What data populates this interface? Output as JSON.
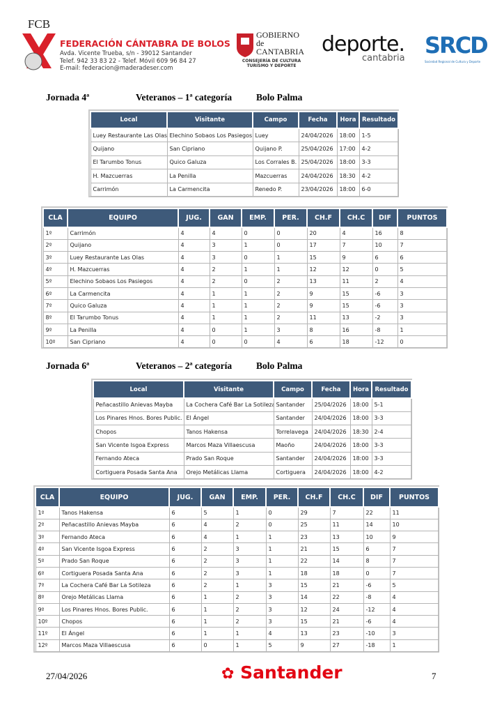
{
  "header": {
    "logo_text": "FCB",
    "org_name": "FEDERACIÓN CÁNTABRA DE BOLOS",
    "address": "Avda. Vicente Trueba, s/n - 39012 Santander",
    "phone": "Telef. 942 33 83 22  - Telef. Móvil 609 96 84 27",
    "email": "E-mail: federacion@maderadeser.com",
    "gov_line1": "GOBIERNO",
    "gov_line2": "de",
    "gov_line3": "CANTABRIA",
    "gov_sub1": "CONSEJERÍA DE CULTURA",
    "gov_sub2": "TURISMO Y DEPORTE",
    "deporte": "deporte.",
    "deporte_sub": "cantabria",
    "srcd": "SRCD",
    "srcd_sub": "Sociedad Regional de Cultura y Deporte"
  },
  "sections": [
    {
      "jornada": "Jornada 4ª",
      "category": "Veteranos – 1ª categoría",
      "modality": "Bolo Palma",
      "matches": {
        "header": [
          "Local",
          "Visitante",
          "Campo",
          "Fecha",
          "Hora",
          "Resultado"
        ],
        "rows": [
          [
            "Luey Restaurante Las Olas",
            "Elechino Sobaos Los Pasiegos",
            "Luey",
            "24/04/2026",
            "18:00",
            "1-5"
          ],
          [
            "Quijano",
            "San Cipriano",
            "Quijano P.",
            "25/04/2026",
            "17:00",
            "4-2"
          ],
          [
            "El Tarumbo Tonus",
            "Quico Galuza",
            "Los Corrales B.",
            "25/04/2026",
            "18:00",
            "3-3"
          ],
          [
            "H. Mazcuerras",
            "La Penilla",
            "Mazcuerras",
            "24/04/2026",
            "18:30",
            "4-2"
          ],
          [
            "Carrimón",
            "La Carmencita",
            "Renedo P.",
            "23/04/2026",
            "18:00",
            "6-0"
          ]
        ]
      },
      "standings": {
        "header": [
          "CLA",
          "EQUIPO",
          "JUG.",
          "GAN",
          "EMP.",
          "PER.",
          "CH.F",
          "CH.C",
          "DIF",
          "PUNTOS"
        ],
        "rows": [
          [
            "1º",
            "Carrimón",
            4,
            4,
            0,
            0,
            20,
            4,
            16,
            8
          ],
          [
            "2º",
            "Quijano",
            4,
            3,
            1,
            0,
            17,
            7,
            10,
            7
          ],
          [
            "3º",
            "Luey Restaurante Las Olas",
            4,
            3,
            0,
            1,
            15,
            9,
            6,
            6
          ],
          [
            "4º",
            "H. Mazcuerras",
            4,
            2,
            1,
            1,
            12,
            12,
            0,
            5
          ],
          [
            "5º",
            "Elechino Sobaos Los Pasiegos",
            4,
            2,
            0,
            2,
            13,
            11,
            2,
            4
          ],
          [
            "6º",
            "La Carmencita",
            4,
            1,
            1,
            2,
            9,
            15,
            -6,
            3
          ],
          [
            "7º",
            "Quico Galuza",
            4,
            1,
            1,
            2,
            9,
            15,
            -6,
            3
          ],
          [
            "8º",
            "El Tarumbo Tonus",
            4,
            1,
            1,
            2,
            11,
            13,
            -2,
            3
          ],
          [
            "9º",
            "La Penilla",
            4,
            0,
            1,
            3,
            8,
            16,
            -8,
            1
          ],
          [
            "10º",
            "San Cipriano",
            4,
            0,
            0,
            4,
            6,
            18,
            -12,
            0
          ]
        ]
      }
    },
    {
      "jornada": "Jornada 6ª",
      "category": "Veteranos – 2ª categoría",
      "modality": "Bolo Palma",
      "matches": {
        "header": [
          "Local",
          "Visitante",
          "Campo",
          "Fecha",
          "Hora",
          "Resultado"
        ],
        "rows": [
          [
            "Peñacastillo Anievas Mayba",
            "La Cochera Café Bar La Sotileza",
            "Santander",
            "25/04/2026",
            "18:00",
            "5-1"
          ],
          [
            "Los Pinares Hnos. Bores Public.",
            "El Ángel",
            "Santander",
            "24/04/2026",
            "18:00",
            "3-3"
          ],
          [
            "Chopos",
            "Tanos Hakensa",
            "Torrelavega",
            "24/04/2026",
            "18:30",
            "2-4"
          ],
          [
            "San Vicente Isgoa Express",
            "Marcos Maza Villaescusa",
            "Maoño",
            "24/04/2026",
            "18:00",
            "3-3"
          ],
          [
            "Fernando Ateca",
            "Prado San Roque",
            "Santander",
            "24/04/2026",
            "18:00",
            "3-3"
          ],
          [
            "Cortiguera Posada Santa Ana",
            "Orejo Metálicas Llama",
            "Cortiguera",
            "24/04/2026",
            "18:00",
            "4-2"
          ]
        ]
      },
      "standings": {
        "header": [
          "CLA",
          "EQUIPO",
          "JUG.",
          "GAN",
          "EMP.",
          "PER.",
          "CH.F",
          "CH.C",
          "DIF",
          "PUNTOS"
        ],
        "rows": [
          [
            "1º",
            "Tanos Hakensa",
            6,
            5,
            1,
            0,
            29,
            7,
            22,
            11
          ],
          [
            "2º",
            "Peñacastillo Anievas Mayba",
            6,
            4,
            2,
            0,
            25,
            11,
            14,
            10
          ],
          [
            "3º",
            "Fernando Ateca",
            6,
            4,
            1,
            1,
            23,
            13,
            10,
            9
          ],
          [
            "4º",
            "San Vicente Isgoa Express",
            6,
            2,
            3,
            1,
            21,
            15,
            6,
            7
          ],
          [
            "5º",
            "Prado San Roque",
            6,
            2,
            3,
            1,
            22,
            14,
            8,
            7
          ],
          [
            "6º",
            "Cortiguera Posada Santa Ana",
            6,
            2,
            3,
            1,
            18,
            18,
            0,
            7
          ],
          [
            "7º",
            "La Cochera Café Bar La Sotileza",
            6,
            2,
            1,
            3,
            15,
            21,
            -6,
            5
          ],
          [
            "8º",
            "Orejo Metálicas Llama",
            6,
            1,
            2,
            3,
            14,
            22,
            -8,
            4
          ],
          [
            "9º",
            "Los Pinares Hnos. Bores Public.",
            6,
            1,
            2,
            3,
            12,
            24,
            -12,
            4
          ],
          [
            "10º",
            "Chopos",
            6,
            1,
            2,
            3,
            15,
            21,
            -6,
            4
          ],
          [
            "11º",
            "El Ángel",
            6,
            1,
            1,
            4,
            13,
            23,
            -10,
            3
          ],
          [
            "12º",
            "Marcos Maza Villaescusa",
            6,
            0,
            1,
            5,
            9,
            27,
            -18,
            1
          ]
        ]
      }
    }
  ],
  "footer": {
    "date": "27/04/2026",
    "sponsor": "Santander",
    "page": "7"
  }
}
